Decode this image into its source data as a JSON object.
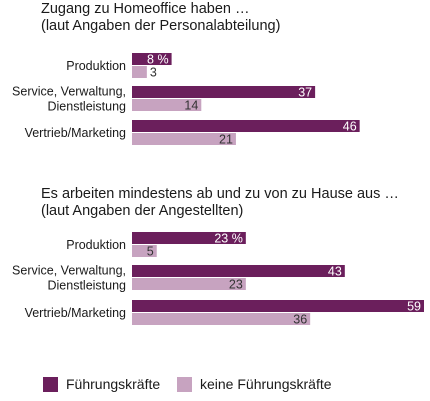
{
  "chart_data": [
    {
      "type": "bar",
      "title": "Zugang zu Homeoffice haben …",
      "subtitle": "(laut Angaben der Personalabteilung)",
      "categories": [
        "Produktion",
        "Service, Verwaltung, Dienstleistung",
        "Vertrieb/Marketing"
      ],
      "category_lines": [
        [
          "Produktion"
        ],
        [
          "Service, Verwaltung,",
          "Dienstleistung"
        ],
        [
          "Vertrieb/Marketing"
        ]
      ],
      "series": [
        {
          "name": "Führungskräfte",
          "values": [
            8,
            37,
            46
          ],
          "labels": [
            "8 %",
            "37",
            "46"
          ]
        },
        {
          "name": "keine Führungskräfte",
          "values": [
            3,
            14,
            21
          ],
          "labels": [
            "3",
            "14",
            "21"
          ]
        }
      ],
      "xlim": [
        0,
        59
      ]
    },
    {
      "type": "bar",
      "title": "Es arbeiten mindestens ab und zu von zu Hause aus …",
      "subtitle": "(laut Angaben der Angestellten)",
      "categories": [
        "Produktion",
        "Service, Verwaltung, Dienstleistung",
        "Vertrieb/Marketing"
      ],
      "category_lines": [
        [
          "Produktion"
        ],
        [
          "Service, Verwaltung,",
          "Dienstleistung"
        ],
        [
          "Vertrieb/Marketing"
        ]
      ],
      "series": [
        {
          "name": "Führungskräfte",
          "values": [
            23,
            43,
            59
          ],
          "labels": [
            "23 %",
            "43",
            "59"
          ]
        },
        {
          "name": "keine Führungskräfte",
          "values": [
            5,
            23,
            36
          ],
          "labels": [
            "5",
            "23",
            "36"
          ]
        }
      ],
      "xlim": [
        0,
        59
      ]
    }
  ],
  "colors": {
    "fuehrung": "#6b1f5c",
    "keine": "#c7a3c0",
    "value_text_dark": "#ffffff",
    "value_text_light": "#333333"
  },
  "legend": [
    {
      "label": "Führungskräfte",
      "color": "#6b1f5c"
    },
    {
      "label": "keine Führungskräfte",
      "color": "#c7a3c0"
    }
  ]
}
